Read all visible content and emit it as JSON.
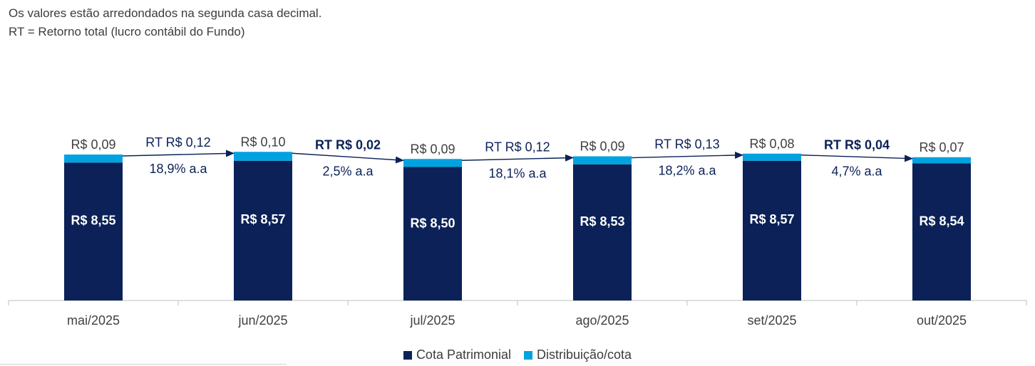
{
  "notes": [
    "Os valores estão arredondados na segunda casa decimal.",
    "RT = Retorno total (lucro contábil do Fundo)"
  ],
  "chart_data": {
    "type": "bar",
    "stacked": true,
    "categories": [
      "mai/2025",
      "jun/2025",
      "jul/2025",
      "ago/2025",
      "set/2025",
      "out/2025"
    ],
    "series": [
      {
        "name": "Cota Patrimonial",
        "color": "#0b2157",
        "values": [
          8.55,
          8.57,
          8.5,
          8.53,
          8.57,
          8.54
        ],
        "labels": [
          "R$ 8,55",
          "R$ 8,57",
          "R$ 8,50",
          "R$ 8,53",
          "R$ 8,57",
          "R$ 8,54"
        ]
      },
      {
        "name": "Distribuição/cota",
        "color": "#00a3e0",
        "values": [
          0.09,
          0.1,
          0.09,
          0.09,
          0.08,
          0.07
        ],
        "labels": [
          "R$ 0,09",
          "R$ 0,10",
          "R$ 0,09",
          "R$ 0,09",
          "R$ 0,08",
          "R$ 0,07"
        ]
      }
    ],
    "annotations": [
      {
        "from": "mai/2025",
        "to": "jun/2025",
        "rt": "RT R$ 0,12",
        "rate": "18,9% a.a",
        "bold": false
      },
      {
        "from": "jun/2025",
        "to": "jul/2025",
        "rt": "RT R$ 0,02",
        "rate": "2,5% a.a",
        "bold": true
      },
      {
        "from": "jul/2025",
        "to": "ago/2025",
        "rt": "RT R$ 0,12",
        "rate": "18,1% a.a",
        "bold": false
      },
      {
        "from": "ago/2025",
        "to": "set/2025",
        "rt": "RT R$ 0,13",
        "rate": "18,2% a.a",
        "bold": false
      },
      {
        "from": "set/2025",
        "to": "out/2025",
        "rt": "RT R$ 0,04",
        "rate": "4,7% a.a",
        "bold": true
      }
    ],
    "legend_position": "bottom-center",
    "grid": false
  }
}
